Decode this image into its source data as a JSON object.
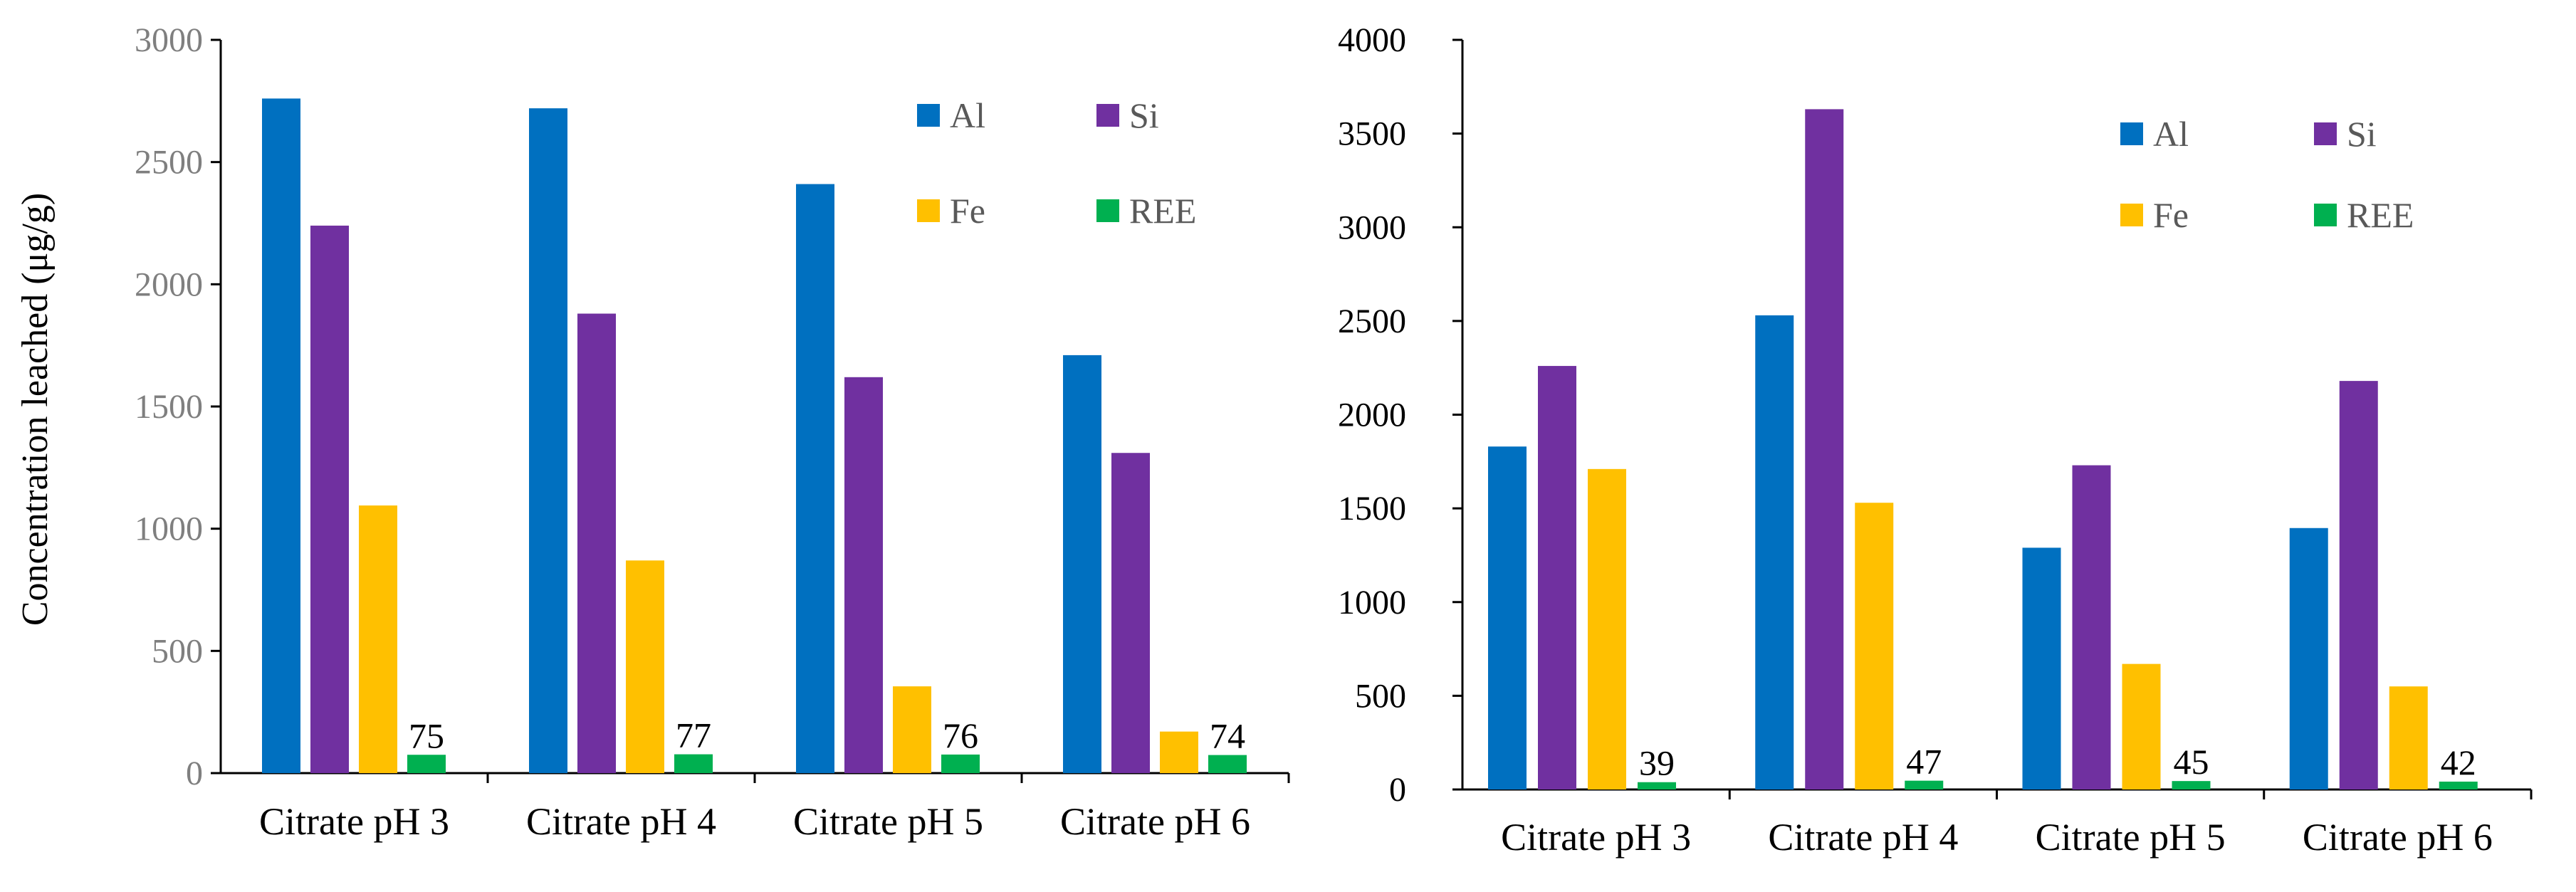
{
  "chart_data": [
    {
      "type": "bar",
      "title": "",
      "xlabel": "",
      "ylabel": "Concentration leached (μg/g)",
      "ylim": [
        0,
        3000
      ],
      "yticks": [
        0,
        500,
        1000,
        1500,
        2000,
        2500,
        3000
      ],
      "grid": false,
      "legend_position": "top-right",
      "categories": [
        "Citrate pH 3",
        "Citrate pH 4",
        "Citrate pH 5",
        "Citrate pH 6"
      ],
      "series": [
        {
          "name": "Al",
          "color": "#0070C0",
          "values": [
            2760,
            2720,
            2410,
            1710
          ]
        },
        {
          "name": "Si",
          "color": "#7030A0",
          "values": [
            2240,
            1880,
            1620,
            1310
          ]
        },
        {
          "name": "Fe",
          "color": "#FFC000",
          "values": [
            1095,
            870,
            355,
            170
          ]
        },
        {
          "name": "REE",
          "color": "#00B050",
          "values": [
            75,
            77,
            76,
            74
          ],
          "labels": [
            "75",
            "77",
            "76",
            "74"
          ]
        }
      ]
    },
    {
      "type": "bar",
      "title": "",
      "xlabel": "",
      "ylabel": "",
      "ylim": [
        0,
        4000
      ],
      "yticks": [
        0,
        500,
        1000,
        1500,
        2000,
        2500,
        3000,
        3500,
        4000
      ],
      "grid": false,
      "legend_position": "top-right",
      "categories": [
        "Citrate pH 3",
        "Citrate pH 4",
        "Citrate pH 5",
        "Citrate pH 6"
      ],
      "series": [
        {
          "name": "Al",
          "color": "#0070C0",
          "values": [
            1830,
            2530,
            1290,
            1395
          ]
        },
        {
          "name": "Si",
          "color": "#7030A0",
          "values": [
            2260,
            3630,
            1730,
            2180
          ]
        },
        {
          "name": "Fe",
          "color": "#FFC000",
          "values": [
            1710,
            1530,
            670,
            550
          ]
        },
        {
          "name": "REE",
          "color": "#00B050",
          "values": [
            39,
            47,
            45,
            42
          ],
          "labels": [
            "39",
            "47",
            "45",
            "42"
          ]
        }
      ]
    }
  ]
}
